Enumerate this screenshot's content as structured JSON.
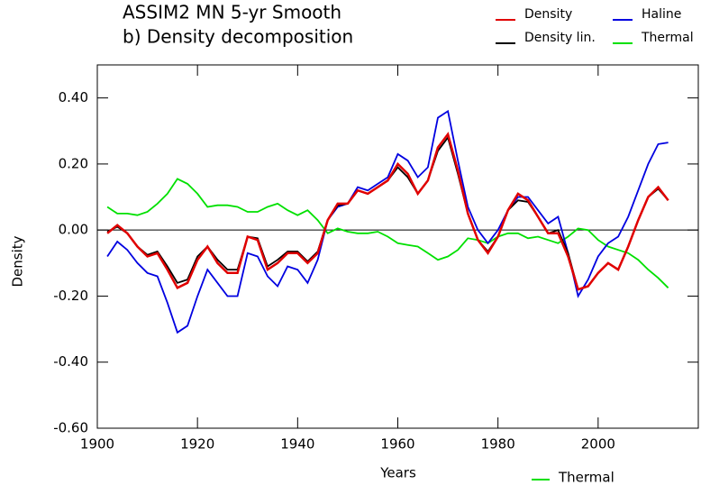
{
  "chart_data": {
    "type": "line",
    "title": "ASSIM2 MN 5-yr Smooth",
    "subtitle": "b) Density decomposition",
    "x_label": "Years",
    "y_label": "Density",
    "x": [
      1902,
      1904,
      1906,
      1908,
      1910,
      1912,
      1914,
      1916,
      1918,
      1920,
      1922,
      1924,
      1926,
      1928,
      1930,
      1932,
      1934,
      1936,
      1938,
      1940,
      1942,
      1944,
      1946,
      1948,
      1950,
      1952,
      1954,
      1956,
      1958,
      1960,
      1962,
      1964,
      1966,
      1968,
      1970,
      1972,
      1974,
      1976,
      1978,
      1980,
      1982,
      1984,
      1986,
      1988,
      1990,
      1992,
      1994,
      1996,
      1998,
      2000,
      2002,
      2004,
      2006,
      2008,
      2010,
      2012,
      2014
    ],
    "series": [
      {
        "name": "Density",
        "color": "#e00000",
        "values": [
          -0.01,
          0.015,
          -0.01,
          -0.05,
          -0.08,
          -0.07,
          -0.12,
          -0.175,
          -0.16,
          -0.09,
          -0.05,
          -0.1,
          -0.13,
          -0.13,
          -0.02,
          -0.03,
          -0.12,
          -0.1,
          -0.07,
          -0.07,
          -0.1,
          -0.07,
          0.03,
          0.08,
          0.08,
          0.12,
          0.11,
          0.13,
          0.15,
          0.2,
          0.17,
          0.11,
          0.15,
          0.25,
          0.29,
          0.18,
          0.05,
          -0.03,
          -0.07,
          -0.02,
          0.06,
          0.11,
          0.09,
          0.04,
          -0.01,
          -0.01,
          -0.08,
          -0.18,
          -0.17,
          -0.13,
          -0.1,
          -0.12,
          -0.05,
          0.03,
          0.1,
          0.13,
          0.09
        ]
      },
      {
        "name": "Haline",
        "color": "#0000e0",
        "values": [
          -0.08,
          -0.035,
          -0.06,
          -0.1,
          -0.13,
          -0.14,
          -0.22,
          -0.31,
          -0.29,
          -0.2,
          -0.12,
          -0.16,
          -0.2,
          -0.2,
          -0.07,
          -0.08,
          -0.14,
          -0.17,
          -0.11,
          -0.12,
          -0.16,
          -0.09,
          0.03,
          0.07,
          0.08,
          0.13,
          0.12,
          0.14,
          0.16,
          0.23,
          0.21,
          0.16,
          0.19,
          0.34,
          0.36,
          0.21,
          0.07,
          0.0,
          -0.04,
          0.0,
          0.06,
          0.1,
          0.1,
          0.06,
          0.02,
          0.04,
          -0.07,
          -0.2,
          -0.15,
          -0.08,
          -0.04,
          -0.02,
          0.04,
          0.12,
          0.2,
          0.26,
          0.265
        ]
      },
      {
        "name": "Density lin.",
        "color": "#000000",
        "values": [
          -0.005,
          0.01,
          -0.01,
          -0.05,
          -0.075,
          -0.065,
          -0.11,
          -0.16,
          -0.15,
          -0.08,
          -0.05,
          -0.09,
          -0.12,
          -0.12,
          -0.02,
          -0.025,
          -0.11,
          -0.09,
          -0.065,
          -0.065,
          -0.095,
          -0.065,
          0.03,
          0.075,
          0.08,
          0.12,
          0.11,
          0.13,
          0.15,
          0.19,
          0.16,
          0.11,
          0.15,
          0.24,
          0.28,
          0.17,
          0.05,
          -0.03,
          -0.065,
          -0.02,
          0.06,
          0.09,
          0.085,
          0.04,
          -0.01,
          0.0,
          -0.07,
          -0.18,
          -0.17,
          -0.13,
          -0.1,
          -0.12,
          -0.05,
          0.03,
          0.1,
          0.125,
          0.09
        ]
      },
      {
        "name": "Thermal",
        "color": "#00e000",
        "values": [
          0.07,
          0.05,
          0.05,
          0.045,
          0.055,
          0.08,
          0.11,
          0.155,
          0.14,
          0.11,
          0.07,
          0.075,
          0.075,
          0.07,
          0.055,
          0.055,
          0.07,
          0.08,
          0.06,
          0.045,
          0.06,
          0.03,
          -0.01,
          0.005,
          -0.005,
          -0.01,
          -0.01,
          -0.005,
          -0.02,
          -0.04,
          -0.045,
          -0.05,
          -0.07,
          -0.09,
          -0.08,
          -0.06,
          -0.025,
          -0.03,
          -0.04,
          -0.02,
          -0.01,
          -0.01,
          -0.025,
          -0.02,
          -0.03,
          -0.04,
          -0.02,
          0.005,
          0.0,
          -0.03,
          -0.05,
          -0.06,
          -0.07,
          -0.09,
          -0.12,
          -0.145,
          -0.175
        ]
      }
    ],
    "annotation": "Thermal",
    "xlim": [
      1900,
      2020
    ],
    "xticks": [
      1900,
      1920,
      1940,
      1960,
      1980,
      2000
    ],
    "ylim": [
      -0.6,
      0.5
    ],
    "yticks": [
      {
        "value": -0.6,
        "label": "-0.60"
      },
      {
        "value": -0.4,
        "label": "-0.40"
      },
      {
        "value": -0.2,
        "label": "-0.20"
      },
      {
        "value": 0,
        "label": "0.00"
      },
      {
        "value": 0.2,
        "label": "0.20"
      },
      {
        "value": 0.4,
        "label": "0.40"
      }
    ],
    "legend": "top-right"
  }
}
